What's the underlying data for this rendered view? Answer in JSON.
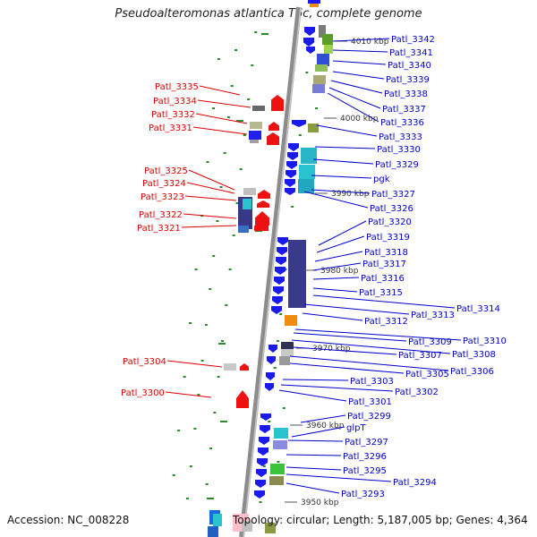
{
  "title": "Pseudoalteromonas atlantica T6c, complete genome",
  "accession_text": "Accession: NC_008228",
  "summary_text": "Topology: circular; Length: 5,187,005 bp; Genes: 4,364",
  "colors": {
    "backbone": "#8c8c8c",
    "forward_label": "#0000cc",
    "reverse_label": "#dd0000",
    "gc_tick": "#2a8a2a"
  },
  "kbp_ticks": [
    "4010 kbp",
    "4000 kbp",
    "3990 kbp",
    "3980 kbp",
    "3970 kbp",
    "3960 kbp",
    "3950 kbp"
  ],
  "forward_genes": [
    "Patl_3342",
    "Patl_3341",
    "Patl_3340",
    "Patl_3339",
    "Patl_3338",
    "Patl_3337",
    "Patl_3336",
    "Patl_3333",
    "Patl_3330",
    "Patl_3329",
    "pgk",
    "Patl_3327",
    "Patl_3326",
    "Patl_3320",
    "Patl_3319",
    "Patl_3318",
    "Patl_3317",
    "Patl_3316",
    "Patl_3315",
    "Patl_3314",
    "Patl_3313",
    "Patl_3312",
    "Patl_3310",
    "Patl_3309",
    "Patl_3308",
    "Patl_3307",
    "Patl_3306",
    "Patl_3305",
    "Patl_3303",
    "Patl_3302",
    "Patl_3301",
    "Patl_3299",
    "glpT",
    "Patl_3297",
    "Patl_3296",
    "Patl_3295",
    "Patl_3294",
    "Patl_3293"
  ],
  "reverse_genes": [
    "Patl_3335",
    "Patl_3334",
    "Patl_3332",
    "Patl_3331",
    "Patl_3325",
    "Patl_3324",
    "Patl_3323",
    "Patl_3322",
    "Patl_3321",
    "Patl_3304",
    "Patl_3300"
  ]
}
